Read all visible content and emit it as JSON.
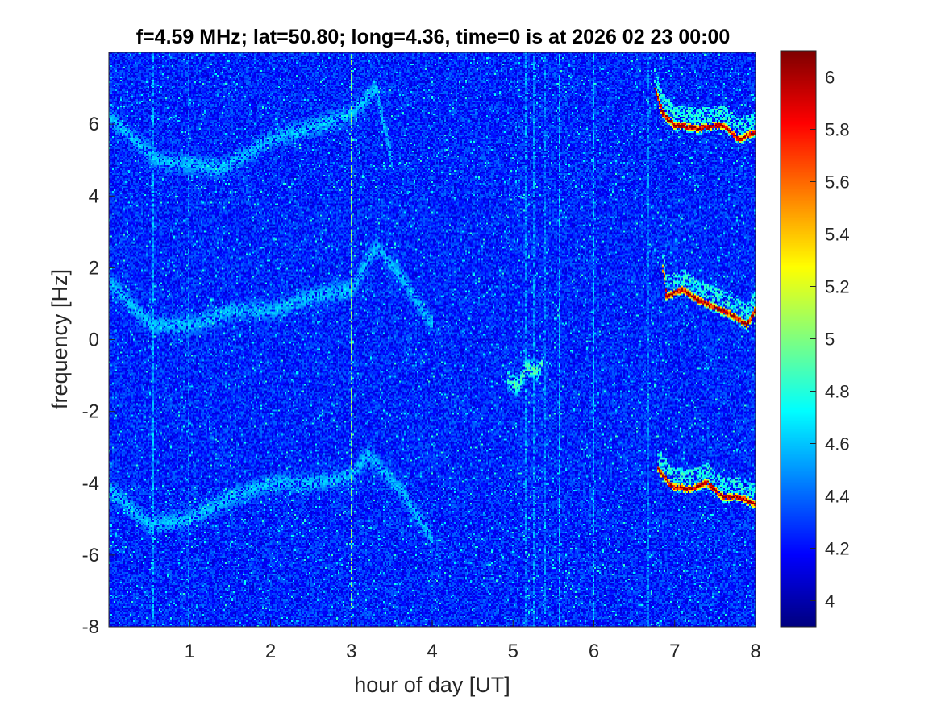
{
  "chart_data": {
    "type": "heatmap",
    "title": "f=4.59 MHz;  lat=50.80; long=4.36, time=0 is at 2026 02 23 00:00",
    "xlabel": "hour of day [UT]",
    "ylabel": "frequency [Hz]",
    "xlim": [
      0,
      8
    ],
    "ylim": [
      -8,
      8
    ],
    "xticks": [
      1,
      2,
      3,
      4,
      5,
      6,
      7,
      8
    ],
    "yticks": [
      -8,
      -6,
      -4,
      -2,
      0,
      2,
      4,
      6
    ],
    "colorbar": {
      "colormap": "jet",
      "range": [
        3.9,
        6.1
      ],
      "ticks": [
        4,
        4.2,
        4.4,
        4.6,
        4.8,
        5,
        5.2,
        5.4,
        5.6,
        5.8,
        6
      ]
    },
    "background_level": 4.25,
    "features": [
      {
        "name": "echo trace upper",
        "points": [
          [
            0.0,
            6.2
          ],
          [
            0.6,
            5.0
          ],
          [
            1.4,
            4.8
          ],
          [
            2.0,
            5.6
          ],
          [
            2.6,
            6.0
          ],
          [
            3.0,
            6.3
          ],
          [
            3.3,
            7.0
          ],
          [
            3.5,
            5.0
          ]
        ],
        "level": 4.6
      },
      {
        "name": "echo trace middle",
        "points": [
          [
            0.0,
            1.6
          ],
          [
            0.5,
            0.4
          ],
          [
            1.0,
            0.4
          ],
          [
            1.5,
            0.8
          ],
          [
            2.0,
            0.8
          ],
          [
            2.5,
            1.2
          ],
          [
            3.0,
            1.4
          ],
          [
            3.3,
            2.6
          ],
          [
            3.6,
            1.8
          ],
          [
            4.0,
            0.4
          ]
        ],
        "level": 4.6
      },
      {
        "name": "echo trace lower",
        "points": [
          [
            0.0,
            -4.2
          ],
          [
            0.5,
            -5.2
          ],
          [
            1.0,
            -5.0
          ],
          [
            1.5,
            -4.4
          ],
          [
            2.0,
            -4.0
          ],
          [
            2.5,
            -4.0
          ],
          [
            3.0,
            -3.8
          ],
          [
            3.2,
            -3.2
          ],
          [
            3.6,
            -4.2
          ],
          [
            4.0,
            -5.6
          ]
        ],
        "level": 4.6
      },
      {
        "name": "meteor echo",
        "points": [
          [
            4.93,
            -1.1
          ],
          [
            5.05,
            -1.3
          ],
          [
            5.15,
            -0.8
          ],
          [
            5.3,
            -0.9
          ],
          [
            5.35,
            -0.7
          ]
        ],
        "level": 4.9
      },
      {
        "name": "strong trace upper",
        "points": [
          [
            6.75,
            7.0
          ],
          [
            6.85,
            6.3
          ],
          [
            7.0,
            6.0
          ],
          [
            7.3,
            5.9
          ],
          [
            7.6,
            6.0
          ],
          [
            7.8,
            5.6
          ],
          [
            8.0,
            5.8
          ]
        ],
        "level": 6.0
      },
      {
        "name": "strong trace middle",
        "points": [
          [
            6.85,
            2.0
          ],
          [
            6.9,
            1.2
          ],
          [
            7.1,
            1.4
          ],
          [
            7.3,
            1.1
          ],
          [
            7.5,
            0.9
          ],
          [
            7.7,
            0.7
          ],
          [
            7.9,
            0.4
          ],
          [
            8.0,
            0.8
          ]
        ],
        "level": 6.0
      },
      {
        "name": "strong trace lower",
        "points": [
          [
            6.8,
            -3.6
          ],
          [
            6.95,
            -4.1
          ],
          [
            7.2,
            -4.2
          ],
          [
            7.4,
            -4.0
          ],
          [
            7.6,
            -4.4
          ],
          [
            7.8,
            -4.4
          ],
          [
            8.0,
            -4.6
          ]
        ],
        "level": 6.0
      }
    ],
    "vertical_stripes": [
      {
        "x": 0.53,
        "level": 4.55
      },
      {
        "x": 0.98,
        "level": 4.45
      },
      {
        "x": 3.0,
        "level": 5.0
      },
      {
        "x": 5.15,
        "level": 4.5
      },
      {
        "x": 5.25,
        "level": 4.5
      },
      {
        "x": 5.4,
        "level": 4.45
      },
      {
        "x": 5.58,
        "level": 4.6
      },
      {
        "x": 6.0,
        "level": 4.6
      },
      {
        "x": 6.68,
        "level": 4.45
      }
    ]
  }
}
